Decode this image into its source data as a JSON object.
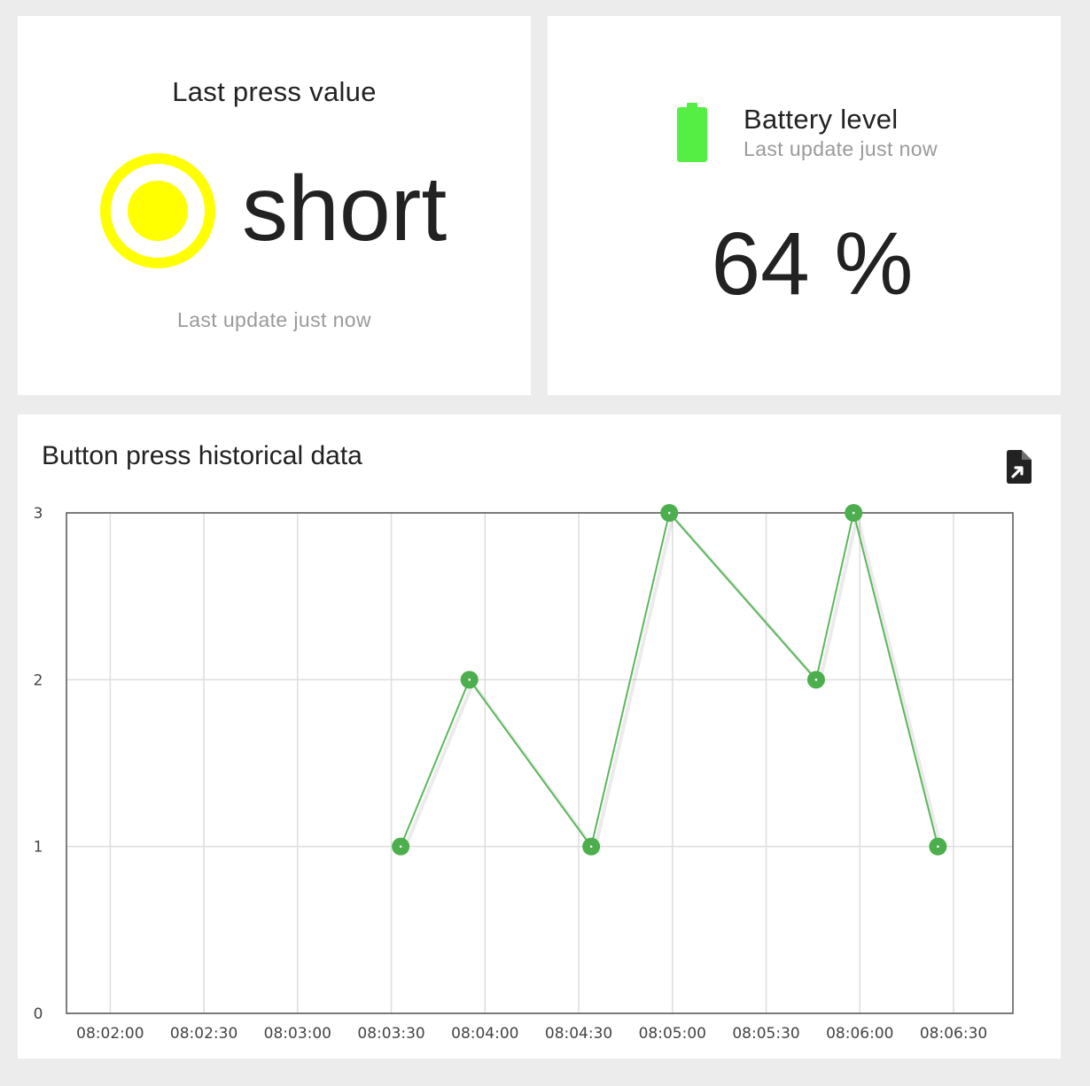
{
  "press_card": {
    "title": "Last press value",
    "value": "short",
    "updated": "Last update just now",
    "icon": "radio-button-checked-icon",
    "icon_color": "#ffff00"
  },
  "battery_card": {
    "title": "Battery level",
    "updated": "Last update just now",
    "value": "64 %",
    "icon": "battery-full-icon",
    "icon_color": "#55ee44"
  },
  "chart_card": {
    "title": "Button press historical data",
    "export_icon": "file-export-icon"
  },
  "colors": {
    "series": "#5cb85c",
    "marker": "#4cae4c",
    "grid": "#dddddd",
    "axis": "#555555"
  },
  "chart_data": {
    "type": "line",
    "title": "Button press historical data",
    "xlabel": "",
    "ylabel": "",
    "x_ticks": [
      "08:02:00",
      "08:02:30",
      "08:03:00",
      "08:03:30",
      "08:04:00",
      "08:04:30",
      "08:05:00",
      "08:05:30",
      "08:06:00",
      "08:06:30"
    ],
    "y_ticks": [
      0,
      1,
      2,
      3
    ],
    "ylim": [
      0,
      3
    ],
    "xlim": [
      "08:01:46",
      "08:06:49"
    ],
    "grid": true,
    "legend": "none",
    "series": [
      {
        "x": [
          "08:03:33",
          "08:03:55",
          "08:04:34",
          "08:04:59",
          "08:05:46",
          "08:05:58",
          "08:06:25"
        ],
        "y": [
          1,
          2,
          1,
          3,
          2,
          3,
          1
        ]
      }
    ]
  }
}
